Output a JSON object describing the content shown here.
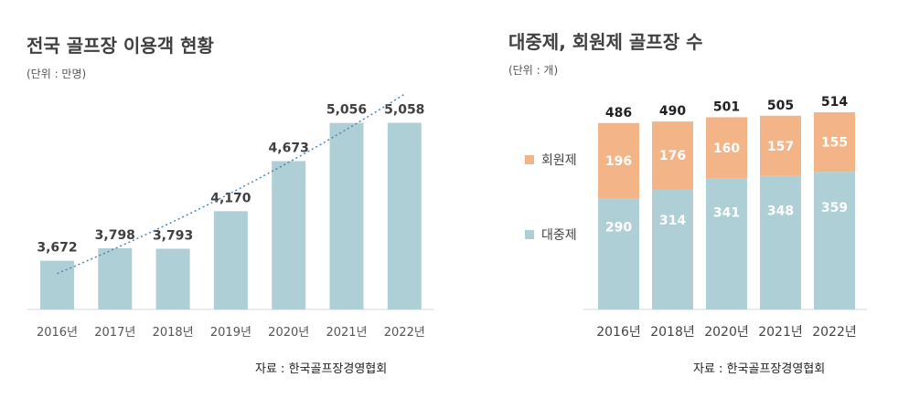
{
  "colors": {
    "bar": "#aecfd6",
    "member": "#f3b487",
    "public": "#aecfd6",
    "trend": "#4f86b3"
  },
  "left": {
    "title": "전국 골프장 이용객 현황",
    "unit": "(단위 : 만명)",
    "source": "자료 : 한국골프장경영협회"
  },
  "right": {
    "title": "대중제, 회원제 골프장 수",
    "unit": "(단위 : 개)",
    "source": "자료 : 한국골프장경영협회",
    "legend": {
      "member": "회원제",
      "public": "대중제"
    }
  },
  "chart_data": [
    {
      "type": "bar",
      "categories": [
        "2016년",
        "2017년",
        "2018년",
        "2019년",
        "2020년",
        "2021년",
        "2022년"
      ],
      "values": [
        3672,
        3798,
        3793,
        4170,
        4673,
        5056,
        5058
      ],
      "labels": [
        "3,672",
        "3,798",
        "3,793",
        "4,170",
        "4,673",
        "5,056",
        "5,058"
      ],
      "trendline": "exponential, dotted",
      "ylim": [
        3000,
        5200
      ],
      "grid": false
    },
    {
      "type": "bar",
      "stacked": true,
      "categories": [
        "2016년",
        "2018년",
        "2020년",
        "2021년",
        "2022년"
      ],
      "series": [
        {
          "name": "대중제",
          "values": [
            290,
            314,
            341,
            348,
            359
          ]
        },
        {
          "name": "회원제",
          "values": [
            196,
            176,
            160,
            157,
            155
          ]
        }
      ],
      "totals": [
        486,
        490,
        501,
        505,
        514
      ],
      "ylim": [
        0,
        600
      ],
      "legend": "left",
      "grid": false
    }
  ]
}
